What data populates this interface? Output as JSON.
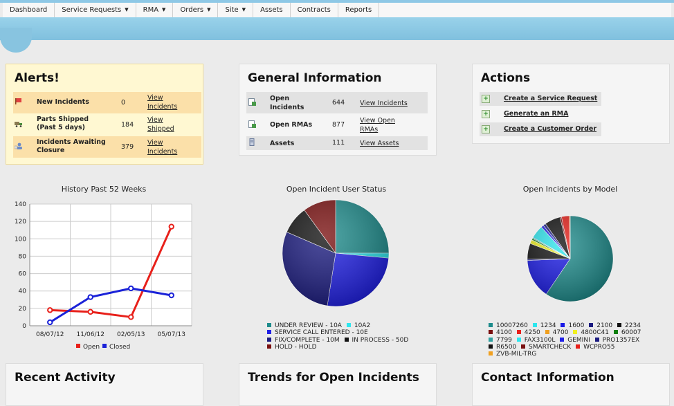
{
  "nav": [
    {
      "label": "Dashboard",
      "dropdown": false
    },
    {
      "label": "Service Requests",
      "dropdown": true
    },
    {
      "label": "RMA",
      "dropdown": true
    },
    {
      "label": "Orders",
      "dropdown": true
    },
    {
      "label": "Site",
      "dropdown": true
    },
    {
      "label": "Assets",
      "dropdown": false
    },
    {
      "label": "Contracts",
      "dropdown": false
    },
    {
      "label": "Reports",
      "dropdown": false
    }
  ],
  "alerts": {
    "title": "Alerts!",
    "rows": [
      {
        "label": "New Incidents",
        "value": "0",
        "link1": "View",
        "link2": "Incidents",
        "icon": "alert-flag-icon"
      },
      {
        "label": "Parts Shipped",
        "label2": "(Past 5 days)",
        "value": "184",
        "link1": "View",
        "link2": "Shipped",
        "icon": "truck-icon"
      },
      {
        "label": "Incidents Awaiting",
        "label2": "Closure",
        "value": "379",
        "link1": "View",
        "link2": "Incidents",
        "icon": "user-wait-icon"
      }
    ]
  },
  "general": {
    "title": "General Information",
    "rows": [
      {
        "label": "Open",
        "label2": "Incidents",
        "value": "644",
        "link1": "View Incidents",
        "icon": "incident-doc-icon"
      },
      {
        "label": "Open RMAs",
        "value": "877",
        "link1": "View Open",
        "link2": "RMAs",
        "icon": "rma-doc-icon"
      },
      {
        "label": "Assets",
        "value": "111",
        "link1": "View Assets",
        "icon": "asset-icon"
      }
    ]
  },
  "actions": {
    "title": "Actions",
    "items": [
      {
        "label": "Create a Service Request"
      },
      {
        "label": "Generate an RMA"
      },
      {
        "label": "Create a Customer Order"
      }
    ]
  },
  "bottom": {
    "recent": "Recent Activity",
    "trends": "Trends for Open Incidents",
    "contact": "Contact Information"
  },
  "colors": {
    "open": "#e8201a",
    "closed": "#1a22d8"
  },
  "chart_data": [
    {
      "type": "line",
      "title": "History Past 52 Weeks",
      "categories": [
        "08/07/12",
        "11/06/12",
        "02/05/13",
        "05/07/13"
      ],
      "series": [
        {
          "name": "Open",
          "color": "#e8201a",
          "values": [
            18,
            16,
            10,
            114
          ]
        },
        {
          "name": "Closed",
          "color": "#1a22d8",
          "values": [
            4,
            33,
            43,
            35
          ]
        }
      ],
      "ylim": [
        0,
        140
      ],
      "yticks": [
        0,
        20,
        40,
        60,
        80,
        100,
        120,
        140
      ],
      "grid": true,
      "legend": "bottom"
    },
    {
      "type": "pie",
      "title": "Open Incident User Status",
      "slices": [
        {
          "label": "UNDER REVIEW - 10A",
          "value": 25,
          "color": "#1e8c8c"
        },
        {
          "label": "10A2",
          "value": 1.5,
          "color": "#2ee6ee"
        },
        {
          "label": "SERVICE CALL ENTERED - 10E",
          "value": 26,
          "color": "#2020e6"
        },
        {
          "label": "FIX/COMPLETE - 10M",
          "value": 29,
          "color": "#1b1b80"
        },
        {
          "label": "IN PROCESS - 50D",
          "value": 8.5,
          "color": "#121212"
        },
        {
          "label": "HOLD - HOLD",
          "value": 10,
          "color": "#7a1010"
        }
      ],
      "legend": "bottom"
    },
    {
      "type": "pie",
      "title": "Open Incidents by Model",
      "slices": [
        {
          "label": "10007260",
          "value": 60,
          "color": "#1e8c8c"
        },
        {
          "label": "1234",
          "value": 0,
          "color": "#2ee6ee"
        },
        {
          "label": "1600",
          "value": 15,
          "color": "#1a1ae6"
        },
        {
          "label": "2100",
          "value": 0.5,
          "color": "#1a1a80"
        },
        {
          "label": "2234",
          "value": 6,
          "color": "#111111"
        },
        {
          "label": "4100",
          "value": 0,
          "color": "#7a1010"
        },
        {
          "label": "4250",
          "value": 0,
          "color": "#e8201a"
        },
        {
          "label": "4700",
          "value": 0,
          "color": "#f0a020"
        },
        {
          "label": "4800C41",
          "value": 1.5,
          "color": "#f0f020"
        },
        {
          "label": "60007",
          "value": 0.6,
          "color": "#108010"
        },
        {
          "label": "7799",
          "value": 0.4,
          "color": "#30a0a0"
        },
        {
          "label": "FAX3100L",
          "value": 5,
          "color": "#2ee6ee"
        },
        {
          "label": "GEMINI",
          "value": 1,
          "color": "#2020e6"
        },
        {
          "label": "PRO1357EX",
          "value": 1,
          "color": "#1a1a80"
        },
        {
          "label": "R6500",
          "value": 6,
          "color": "#111111"
        },
        {
          "label": "SMARTCHECK",
          "value": 0.6,
          "color": "#7a1010"
        },
        {
          "label": "WCPRO55",
          "value": 3,
          "color": "#e8201a"
        },
        {
          "label": "ZVB-MIL-TRG",
          "value": 0.3,
          "color": "#f0a020"
        }
      ],
      "legend": "bottom"
    }
  ]
}
